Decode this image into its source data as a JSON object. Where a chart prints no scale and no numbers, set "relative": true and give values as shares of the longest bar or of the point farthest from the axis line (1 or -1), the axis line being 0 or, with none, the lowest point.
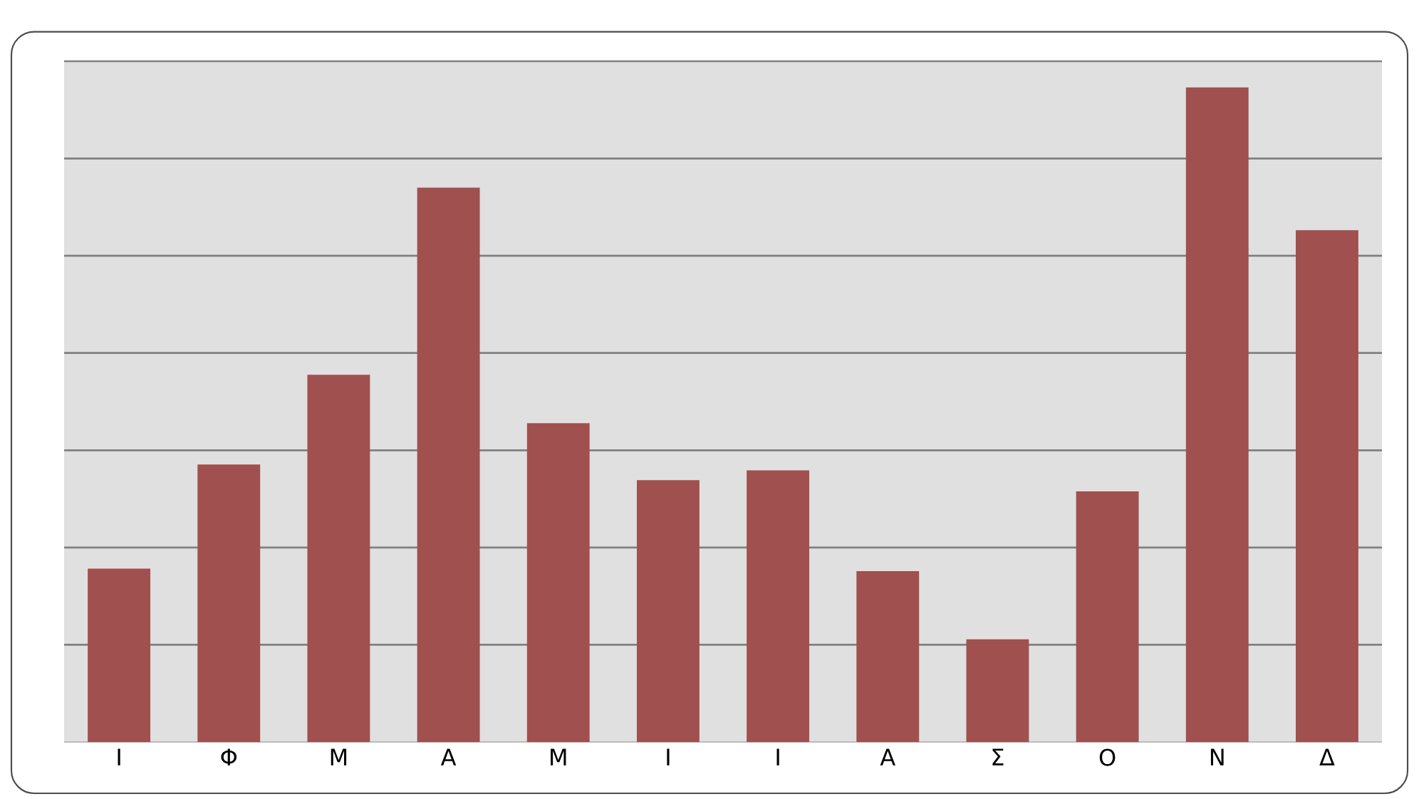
{
  "chart_data": {
    "type": "bar",
    "relative": true,
    "grid": "y",
    "color": "#a0504e",
    "categories": [
      "Ι",
      "Φ",
      "Μ",
      "Α",
      "Μ",
      "Ι",
      "Ι",
      "Α",
      "Σ",
      "Ο",
      "Ν",
      "Δ"
    ],
    "values": [
      0.265,
      0.424,
      0.561,
      0.847,
      0.487,
      0.4,
      0.415,
      0.261,
      0.157,
      0.383,
      1,
      0.782
    ]
  }
}
